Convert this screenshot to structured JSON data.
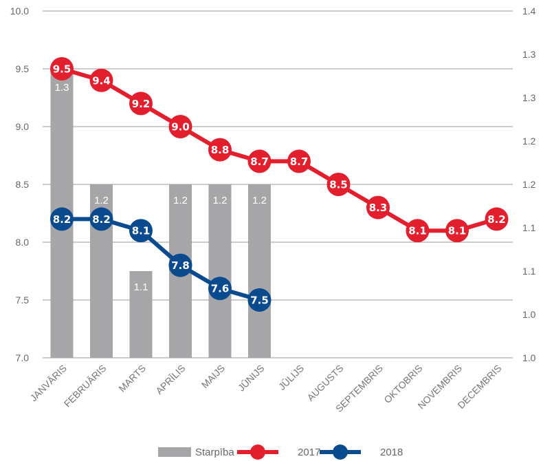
{
  "chart_data": {
    "type": "bar",
    "categories": [
      "JANVĀRIS",
      "FEBRUĀRIS",
      "MARTS",
      "APRĪLIS",
      "MAIJS",
      "JŪNIJS",
      "JŪLIJS",
      "AUGUSTS",
      "SEPTEMBRIS",
      "OKTOBRIS",
      "NOVEMBRIS",
      "DECEMBRIS"
    ],
    "ylim": [
      7.0,
      10.0
    ],
    "yticks": [
      "7.0",
      "7.5",
      "8.0",
      "8.5",
      "9.0",
      "9.5",
      "10.0"
    ],
    "y2lim": [
      1.0,
      1.4
    ],
    "y2ticks": [
      "1.0",
      "1.0",
      "1.1",
      "1.1",
      "1.2",
      "1.2",
      "1.3",
      "1.3",
      "1.4"
    ],
    "grid": true,
    "legend_position": "bottom",
    "series": [
      {
        "name": "Starpība",
        "type": "bar",
        "axis": "right",
        "color": "#a6a6a8",
        "values": [
          1.33,
          1.2,
          1.1,
          1.2,
          1.2,
          1.2,
          null,
          null,
          null,
          null,
          null,
          null
        ],
        "labels": [
          "1.3",
          "1.2",
          "1.1",
          "1.2",
          "1.2",
          "1.2"
        ]
      },
      {
        "name": "2017",
        "type": "line",
        "axis": "left",
        "color": "#e31e2d",
        "values": [
          9.5,
          9.4,
          9.2,
          9.0,
          8.8,
          8.7,
          8.7,
          8.5,
          8.3,
          8.1,
          8.1,
          8.2
        ],
        "labels": [
          "9.5",
          "9.4",
          "9.2",
          "9.0",
          "8.8",
          "8.7",
          "8.7",
          "8.5",
          "8.3",
          "8.1",
          "8.1",
          "8.2"
        ]
      },
      {
        "name": "2018",
        "type": "line",
        "axis": "left",
        "color": "#0a4a8e",
        "values": [
          8.2,
          8.2,
          8.1,
          7.8,
          7.6,
          7.5,
          null,
          null,
          null,
          null,
          null,
          null
        ],
        "labels": [
          "8.2",
          "8.2",
          "8.1",
          "7.8",
          "7.6",
          "7.5"
        ]
      }
    ]
  }
}
